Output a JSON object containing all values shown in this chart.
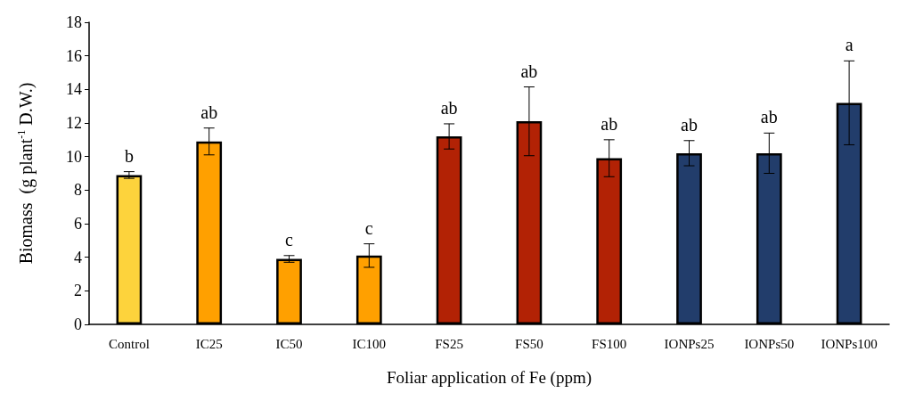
{
  "chart_data": {
    "type": "bar",
    "xlabel": "Foliar application of Fe (ppm)",
    "ylabel": "Biomass  (g plant$^{-1}$ D.W.)",
    "categories": [
      "Control",
      "IC25",
      "IC50",
      "IC100",
      "FS25",
      "FS50",
      "FS100",
      "IONPs25",
      "IONPs50",
      "IONPs100"
    ],
    "values": [
      8.9,
      10.9,
      3.9,
      4.1,
      11.2,
      12.1,
      9.9,
      10.2,
      10.2,
      13.2
    ],
    "errors": [
      0.2,
      0.8,
      0.2,
      0.7,
      0.75,
      2.05,
      1.1,
      0.75,
      1.2,
      2.5
    ],
    "colors": [
      "#fdd33c",
      "#ffa000",
      "#ffa000",
      "#ffa000",
      "#b22205",
      "#b22205",
      "#b22205",
      "#223d6b",
      "#223d6b",
      "#223d6b"
    ],
    "ylim": [
      0,
      18
    ],
    "yticks": [
      0,
      2,
      4,
      6,
      8,
      10,
      12,
      14,
      16,
      18
    ],
    "annotations": [
      {
        "text": "b",
        "x": "Control",
        "y": 9.1
      },
      {
        "text": "ab",
        "x": "IC25",
        "y": 11.7
      },
      {
        "text": "c",
        "x": "IC50",
        "y": 4.1
      },
      {
        "text": "c",
        "x": "IC100",
        "y": 4.8
      },
      {
        "text": "ab",
        "x": "FS25",
        "y": 11.95
      },
      {
        "text": "ab",
        "x": "FS50",
        "y": 14.15
      },
      {
        "text": "ab",
        "x": "FS100",
        "y": 11.0
      },
      {
        "text": "ab",
        "x": "IONPs25",
        "y": 10.95
      },
      {
        "text": "ab",
        "x": "IONPs50",
        "y": 11.4
      },
      {
        "text": "a",
        "x": "IONPs100",
        "y": 15.7
      }
    ]
  }
}
